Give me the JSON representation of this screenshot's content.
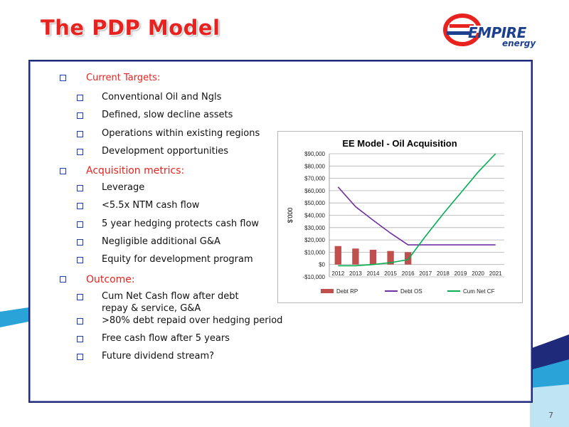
{
  "slide": {
    "title": "The PDP Model",
    "page_number": "7"
  },
  "logo": {
    "word": "EMPIRE",
    "sub": "energy",
    "colors": {
      "red": "#e8231f",
      "blue": "#1d3f8f"
    }
  },
  "sections": [
    {
      "heading": "Current Targets:",
      "items": [
        "Conventional Oil and Ngls",
        "Defined, slow decline assets",
        "Operations within existing regions",
        "Development opportunities"
      ]
    },
    {
      "heading": "Acquisition metrics:",
      "items": [
        "Leverage",
        "<5.5x NTM cash flow",
        "5 year hedging protects cash flow",
        "Negligible additional G&A",
        "Equity for development program"
      ]
    },
    {
      "heading": "Outcome:",
      "items": [
        "Cum Net Cash flow after debt repay & service, G&A",
        ">80% debt repaid over hedging period",
        "Free cash flow after 5 years",
        "Future dividend stream?"
      ]
    }
  ],
  "chart_data": {
    "type": "bar",
    "title": "EE Model - Oil Acquisition",
    "ylabel": "$'000",
    "xlabel": "",
    "categories": [
      "2012",
      "2013",
      "2014",
      "2015",
      "2016",
      "2017",
      "2018",
      "2019",
      "2020",
      "2021"
    ],
    "ylim": [
      -10000,
      90000
    ],
    "yticks": [
      -10000,
      0,
      10000,
      20000,
      30000,
      40000,
      50000,
      60000,
      70000,
      80000,
      90000
    ],
    "ytick_labels": [
      "-$10,000",
      "$0",
      "$10,000",
      "$20,000",
      "$30,000",
      "$40,000",
      "$50,000",
      "$60,000",
      "$70,000",
      "$80,000",
      "$90,000"
    ],
    "grid": true,
    "legend_position": "bottom",
    "series": [
      {
        "name": "Debt RP",
        "kind": "bar",
        "color": "#c0504d",
        "values": [
          15000,
          13000,
          12000,
          11000,
          10000,
          0,
          0,
          0,
          0,
          0
        ]
      },
      {
        "name": "Debt OS",
        "kind": "line",
        "color": "#7030a0",
        "values": [
          63000,
          47000,
          36000,
          25500,
          16000,
          16000,
          16000,
          16000,
          16000,
          16000
        ]
      },
      {
        "name": "Cum Net CF",
        "kind": "line",
        "color": "#00b050",
        "values": [
          -1000,
          -1000,
          0,
          1500,
          4000,
          23000,
          41000,
          58000,
          75000,
          90000
        ]
      }
    ]
  }
}
